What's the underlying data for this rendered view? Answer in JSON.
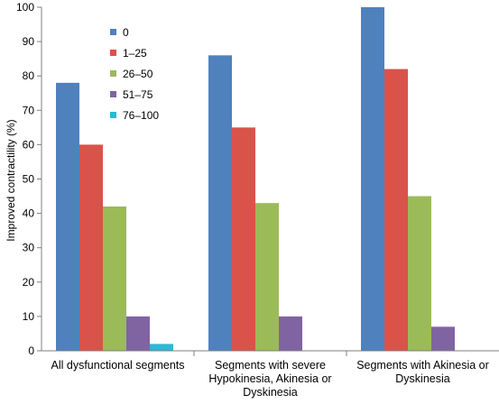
{
  "chart_data": {
    "type": "bar",
    "categories": [
      [
        "All dysfunctional segments"
      ],
      [
        "Segments with severe",
        "Hypokinesia, Akinesia or",
        "Dyskinesia"
      ],
      [
        "Segments with Akinesia or",
        "Dyskinesia"
      ]
    ],
    "series": [
      {
        "name": "0",
        "color": "#4F81BD",
        "values": [
          78,
          86,
          100
        ]
      },
      {
        "name": "1–25",
        "color": "#D9534A",
        "values": [
          60,
          65,
          82
        ]
      },
      {
        "name": "26–50",
        "color": "#9BBB59",
        "values": [
          42,
          43,
          45
        ]
      },
      {
        "name": "51–75",
        "color": "#8064A2",
        "values": [
          10,
          10,
          7
        ]
      },
      {
        "name": "76–100",
        "color": "#31B6D4",
        "values": [
          2,
          0,
          0
        ]
      }
    ],
    "ylabel": "Improved contractility (%)",
    "ylim": [
      0,
      100
    ],
    "yticks": [
      0,
      10,
      20,
      30,
      40,
      50,
      60,
      70,
      80,
      90,
      100
    ],
    "grid": false,
    "legend_position": "top-left"
  }
}
